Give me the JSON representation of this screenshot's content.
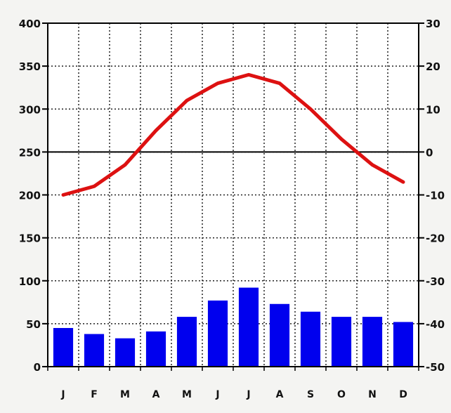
{
  "chart_data": {
    "type": "bar+line",
    "categories": [
      "J",
      "F",
      "M",
      "A",
      "M",
      "J",
      "J",
      "A",
      "S",
      "O",
      "N",
      "D"
    ],
    "bar_series": {
      "values": [
        45,
        38,
        33,
        41,
        58,
        77,
        92,
        73,
        64,
        58,
        58,
        52
      ],
      "color": "#0000ee",
      "axis": "left"
    },
    "line_series": {
      "values": [
        -10,
        -8,
        -3,
        5,
        12,
        16,
        18,
        16,
        10,
        3,
        -3,
        -7
      ],
      "color": "#dd1111",
      "axis": "right"
    },
    "left_axis": {
      "ylim": [
        0,
        400
      ],
      "ticks": [
        0,
        50,
        100,
        150,
        200,
        250,
        300,
        350,
        400
      ],
      "tick_labels": [
        "0",
        "50",
        "100",
        "150",
        "200",
        "250",
        "300",
        "350",
        "400"
      ]
    },
    "right_axis": {
      "ylim": [
        -50,
        30
      ],
      "ticks": [
        -50,
        -40,
        -30,
        -20,
        -10,
        0,
        10,
        20,
        30
      ],
      "tick_labels": [
        "-50",
        "-40",
        "-30",
        "-20",
        "-10",
        "0",
        "10",
        "20",
        "30"
      ]
    },
    "grid": true,
    "zero_line_color": "#000000"
  }
}
